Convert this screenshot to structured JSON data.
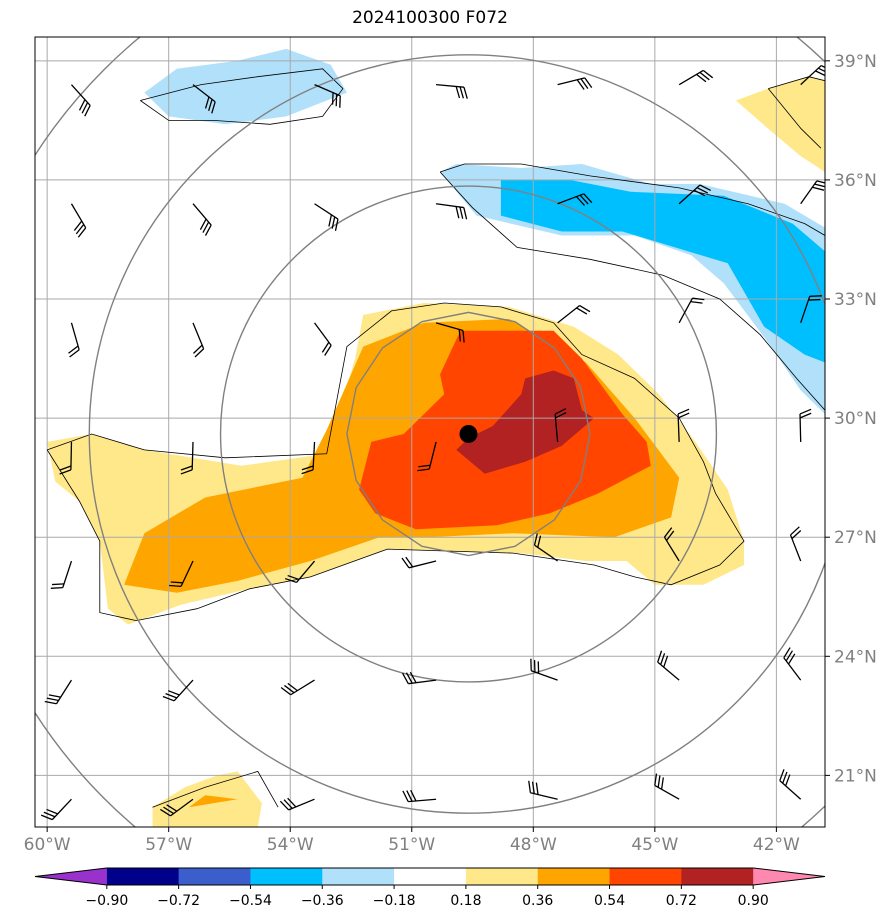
{
  "chart_data": {
    "type": "heatmap",
    "title": "2024100300 F072",
    "xlim": [
      -60.3,
      -40.8
    ],
    "ylim": [
      19.7,
      39.6
    ],
    "x_ticks": [
      {
        "value": -60,
        "label": "60°W"
      },
      {
        "value": -57,
        "label": "57°W"
      },
      {
        "value": -54,
        "label": "54°W"
      },
      {
        "value": -51,
        "label": "51°W"
      },
      {
        "value": -48,
        "label": "48°W"
      },
      {
        "value": -45,
        "label": "45°W"
      },
      {
        "value": -42,
        "label": "42°W"
      }
    ],
    "y_ticks": [
      {
        "value": 39,
        "label": "39°N"
      },
      {
        "value": 36,
        "label": "36°N"
      },
      {
        "value": 33,
        "label": "33°N"
      },
      {
        "value": 30,
        "label": "30°N"
      },
      {
        "value": 27,
        "label": "27°N"
      },
      {
        "value": 24,
        "label": "24°N"
      },
      {
        "value": 21,
        "label": "21°N"
      }
    ],
    "grid": true,
    "colorbar": {
      "levels": [
        "−0.90",
        "−0.72",
        "−0.54",
        "−0.36",
        "−0.18",
        "0.18",
        "0.36",
        "0.54",
        "0.72",
        "0.90"
      ],
      "colors": [
        "#9932cc",
        "#00008b",
        "#3a5fcd",
        "#00bfff",
        "#b0e0fa",
        "#ffffff",
        "#ffe88a",
        "#ffa500",
        "#ff4500",
        "#b22222",
        "#ff88b0"
      ],
      "extend": "both",
      "placement": "bottom"
    },
    "storm_center": {
      "lon": -49.6,
      "lat": 29.6
    },
    "range_ring_radii_deg": [
      3,
      6,
      9,
      12
    ],
    "filled_regions": [
      {
        "level": "0.18 to 0.36",
        "color": "#ffe88a",
        "points": [
          [
            -60,
            29.4
          ],
          [
            -58.9,
            29.6
          ],
          [
            -57.6,
            29.2
          ],
          [
            -55.2,
            28.8
          ],
          [
            -53.1,
            29.1
          ],
          [
            -52.4,
            31.5
          ],
          [
            -52.2,
            32.6
          ],
          [
            -50.7,
            32.9
          ],
          [
            -48.6,
            32.8
          ],
          [
            -47,
            32.3
          ],
          [
            -45.9,
            31.6
          ],
          [
            -44.9,
            30.6
          ],
          [
            -44,
            29.4
          ],
          [
            -43.2,
            28.2
          ],
          [
            -42.8,
            26.9
          ],
          [
            -42.8,
            26.3
          ],
          [
            -43.8,
            25.8
          ],
          [
            -45,
            25.8
          ],
          [
            -45.7,
            26.4
          ],
          [
            -46.7,
            26.4
          ],
          [
            -48.3,
            26.6
          ],
          [
            -51.6,
            26.7
          ],
          [
            -53.5,
            26
          ],
          [
            -55,
            25.7
          ],
          [
            -56.7,
            25.3
          ],
          [
            -58,
            24.8
          ],
          [
            -58.5,
            25.2
          ],
          [
            -58.7,
            26.9
          ],
          [
            -59.2,
            27.9
          ],
          [
            -59.8,
            28.4
          ]
        ]
      },
      {
        "level": "0.18 to 0.36",
        "color": "#ffe88a",
        "points": [
          [
            -42.2,
            38.3
          ],
          [
            -41.2,
            38.6
          ],
          [
            -40.8,
            38.5
          ],
          [
            -40.8,
            36.2
          ],
          [
            -41.4,
            36.6
          ],
          [
            -42.1,
            37.2
          ],
          [
            -43,
            38
          ]
        ]
      },
      {
        "level": "0.18 to 0.36",
        "color": "#ffe88a",
        "points": [
          [
            -57.4,
            20.2
          ],
          [
            -56.6,
            20.7
          ],
          [
            -55.8,
            21
          ],
          [
            -55.3,
            21.1
          ],
          [
            -54.7,
            20.3
          ],
          [
            -54.8,
            19.7
          ],
          [
            -57.4,
            19.7
          ]
        ]
      },
      {
        "level": "0.36 to 0.54",
        "color": "#ffa500",
        "points": [
          [
            -58.1,
            25.8
          ],
          [
            -57.6,
            27.1
          ],
          [
            -56.1,
            28
          ],
          [
            -53.7,
            28.5
          ],
          [
            -53.1,
            29.7
          ],
          [
            -52.2,
            31.8
          ],
          [
            -50.7,
            32.4
          ],
          [
            -48.6,
            32.5
          ],
          [
            -46.7,
            31.4
          ],
          [
            -45.5,
            30
          ],
          [
            -44.4,
            28.5
          ],
          [
            -44.6,
            27.5
          ],
          [
            -46,
            27
          ],
          [
            -48.5,
            27.1
          ],
          [
            -50.6,
            27
          ],
          [
            -51.8,
            27
          ],
          [
            -53.5,
            26.4
          ],
          [
            -55.3,
            25.9
          ],
          [
            -56.8,
            25.6
          ]
        ]
      },
      {
        "level": "0.36 to 0.54",
        "color": "#ffa500",
        "points": [
          [
            -56.5,
            20.2
          ],
          [
            -55.3,
            20.4
          ],
          [
            -56.1,
            20.5
          ]
        ]
      },
      {
        "level": "0.54 to 0.72",
        "color": "#ff4500",
        "points": [
          [
            -52.3,
            28.2
          ],
          [
            -52,
            29.4
          ],
          [
            -51.2,
            29.6
          ],
          [
            -50.2,
            30.6
          ],
          [
            -50.3,
            31.1
          ],
          [
            -49.8,
            32.2
          ],
          [
            -47.5,
            32.2
          ],
          [
            -46.8,
            31.5
          ],
          [
            -45.8,
            30.1
          ],
          [
            -45.2,
            29.4
          ],
          [
            -45.1,
            28.8
          ],
          [
            -46.4,
            28.1
          ],
          [
            -47.6,
            27.6
          ],
          [
            -48.9,
            27.3
          ],
          [
            -50.9,
            27.2
          ],
          [
            -51.9,
            27.6
          ]
        ]
      },
      {
        "level": "0.72 to 0.90",
        "color": "#b22222",
        "points": [
          [
            -49.6,
            29.5
          ],
          [
            -49,
            29.8
          ],
          [
            -48.3,
            30.6
          ],
          [
            -48.2,
            31
          ],
          [
            -47.5,
            31.2
          ],
          [
            -47,
            31
          ],
          [
            -46.8,
            30.2
          ],
          [
            -46.5,
            30
          ],
          [
            -47.3,
            29.3
          ],
          [
            -48.2,
            28.9
          ],
          [
            -49.2,
            28.6
          ],
          [
            -49.9,
            29.2
          ]
        ]
      },
      {
        "level": "−0.36 to −0.18",
        "color": "#b0e0fa",
        "points": [
          [
            -50.3,
            36.2
          ],
          [
            -49.9,
            36.4
          ],
          [
            -48.3,
            36.3
          ],
          [
            -46.8,
            36.4
          ],
          [
            -45.1,
            35.9
          ],
          [
            -43.9,
            35.9
          ],
          [
            -41.8,
            35.4
          ],
          [
            -40.8,
            34.8
          ],
          [
            -40.8,
            30.1
          ],
          [
            -41.4,
            30.7
          ],
          [
            -42.2,
            31.9
          ],
          [
            -43.3,
            33.4
          ],
          [
            -44.1,
            34.1
          ],
          [
            -45.5,
            34.6
          ],
          [
            -47.3,
            34.6
          ],
          [
            -49.4,
            35.1
          ]
        ]
      },
      {
        "level": "−0.36 to −0.18",
        "color": "#b0e0fa",
        "points": [
          [
            -57.6,
            38.2
          ],
          [
            -56.8,
            38.8
          ],
          [
            -55.3,
            39.0
          ],
          [
            -54.1,
            39.3
          ],
          [
            -53,
            38.9
          ],
          [
            -52.6,
            38.2
          ],
          [
            -54.1,
            37.6
          ],
          [
            -55.6,
            37.4
          ],
          [
            -57.0,
            37.6
          ]
        ]
      },
      {
        "level": "−0.54 to −0.36",
        "color": "#00bfff",
        "points": [
          [
            -48.8,
            36.0
          ],
          [
            -47.1,
            36.0
          ],
          [
            -45.6,
            35.7
          ],
          [
            -43.3,
            35.6
          ],
          [
            -41.6,
            34.9
          ],
          [
            -40.8,
            34.2
          ],
          [
            -40.8,
            31.4
          ],
          [
            -41.3,
            31.6
          ],
          [
            -42.3,
            32.3
          ],
          [
            -43.2,
            33.9
          ],
          [
            -44.5,
            34.3
          ],
          [
            -45.8,
            34.7
          ],
          [
            -47.3,
            34.7
          ],
          [
            -48.8,
            35.1
          ]
        ]
      }
    ]
  }
}
